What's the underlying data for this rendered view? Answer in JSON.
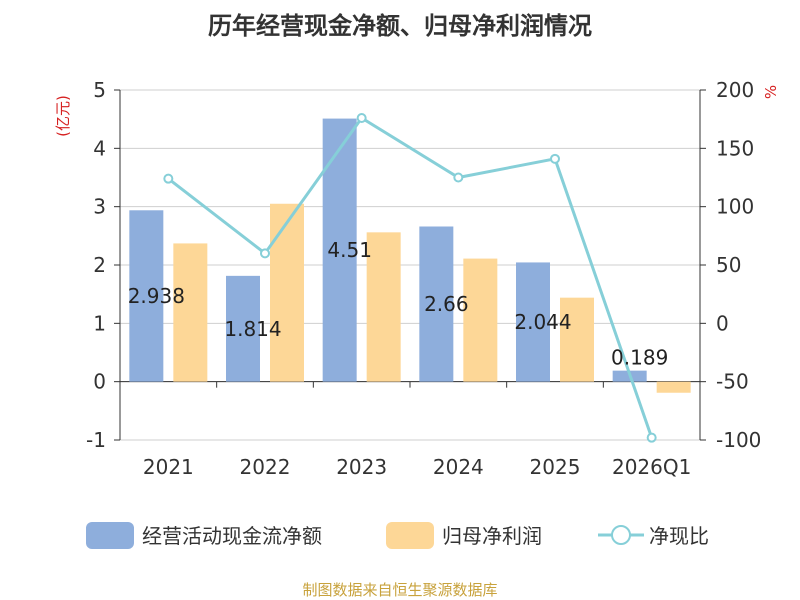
{
  "chart_data": {
    "type": "bar",
    "title": "历年经营现金净额、归母净利润情况",
    "source": "制图数据来自恒生聚源数据库",
    "left_axis_unit": "(亿元)",
    "right_axis_unit": "%",
    "categories": [
      "2021",
      "2022",
      "2023",
      "2024",
      "2025",
      "2026Q1"
    ],
    "left_ylim": [
      -1,
      5
    ],
    "left_ticks": [
      "5",
      "4",
      "3",
      "2",
      "1",
      "0",
      "-1"
    ],
    "right_ylim": [
      -100,
      200
    ],
    "right_ticks": [
      "200",
      "150",
      "100",
      "50",
      "0",
      "-50",
      "-100"
    ],
    "grid": true,
    "legend_position": "bottom",
    "series": [
      {
        "name": "经营活动现金流净额",
        "axis": "left",
        "kind": "bar",
        "color": "#8eaedc",
        "values": [
          2.938,
          1.814,
          4.51,
          2.66,
          2.044,
          0.189
        ],
        "labels": [
          "2.938",
          "1.814",
          "4.51",
          "2.66",
          "2.044",
          "0.189"
        ]
      },
      {
        "name": "归母净利润",
        "axis": "left",
        "kind": "bar",
        "color": "#fdd797",
        "values": [
          2.37,
          3.05,
          2.56,
          2.11,
          1.44,
          -0.19
        ]
      },
      {
        "name": "净现比",
        "axis": "right",
        "kind": "line",
        "color": "#86cfd8",
        "values": [
          124,
          60,
          176,
          125,
          141,
          -98
        ]
      }
    ]
  }
}
